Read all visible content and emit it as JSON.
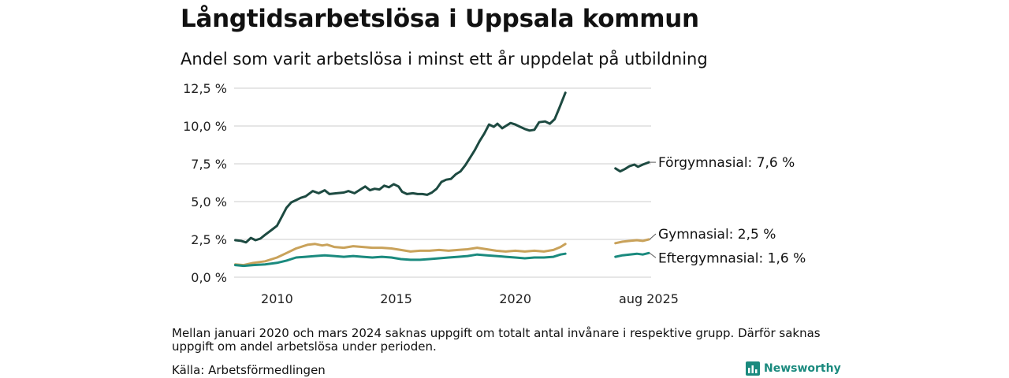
{
  "header": {
    "title": "Långtidsarbetslösa i Uppsala kommun",
    "subtitle": "Andel som varit arbetslösa i minst ett år uppdelat på utbildning"
  },
  "footer": {
    "note": "Mellan januari 2020 och mars 2024 saknas uppgift om totalt antal invånare i respektive grupp. Därför saknas uppgift om andel arbetslösa under perioden.",
    "source": "Källa: Arbetsförmedlingen",
    "brand": "Newsworthy",
    "brand_color": "#1a8a7e"
  },
  "chart_data": {
    "type": "line",
    "title": "Långtidsarbetslösa i Uppsala kommun",
    "subtitle": "Andel som varit arbetslösa i minst ett år uppdelat på utbildning",
    "xlabel": "",
    "ylabel": "",
    "ylim": [
      0,
      12.5
    ],
    "xlim": [
      2008.2,
      2025.7
    ],
    "y_ticks": [
      0,
      2.5,
      5,
      7.5,
      10,
      12.5
    ],
    "y_tick_labels": [
      "0,0 %",
      "2,5 %",
      "5,0 %",
      "7,5 %",
      "10,0 %",
      "12,5 %"
    ],
    "x_ticks": [
      2010,
      2015,
      2020,
      2025.6
    ],
    "x_tick_labels": [
      "2010",
      "2015",
      "2020",
      "aug 2025"
    ],
    "grid": true,
    "gap": "Mellan januari 2020 och mars 2024 saknas uppgift",
    "series": [
      {
        "name": "Förgymnasial",
        "end_label": "Förgymnasial: 7,6 %",
        "color": "#1d4a41",
        "segments": [
          [
            [
              2008.25,
              2.45
            ],
            [
              2008.5,
              2.4
            ],
            [
              2008.7,
              2.3
            ],
            [
              2008.9,
              2.6
            ],
            [
              2009.1,
              2.45
            ],
            [
              2009.3,
              2.55
            ],
            [
              2009.5,
              2.8
            ],
            [
              2009.75,
              3.1
            ],
            [
              2010.0,
              3.4
            ],
            [
              2010.2,
              4.0
            ],
            [
              2010.4,
              4.6
            ],
            [
              2010.6,
              4.95
            ],
            [
              2010.8,
              5.1
            ],
            [
              2011.0,
              5.25
            ],
            [
              2011.2,
              5.35
            ],
            [
              2011.5,
              5.7
            ],
            [
              2011.75,
              5.55
            ],
            [
              2012.0,
              5.75
            ],
            [
              2012.2,
              5.5
            ],
            [
              2012.5,
              5.55
            ],
            [
              2012.8,
              5.6
            ],
            [
              2013.0,
              5.7
            ],
            [
              2013.25,
              5.55
            ],
            [
              2013.5,
              5.8
            ],
            [
              2013.7,
              6.0
            ],
            [
              2013.9,
              5.75
            ],
            [
              2014.1,
              5.85
            ],
            [
              2014.3,
              5.8
            ],
            [
              2014.5,
              6.05
            ],
            [
              2014.7,
              5.95
            ],
            [
              2014.9,
              6.15
            ],
            [
              2015.1,
              6.0
            ],
            [
              2015.25,
              5.65
            ],
            [
              2015.45,
              5.5
            ],
            [
              2015.7,
              5.55
            ],
            [
              2015.9,
              5.5
            ],
            [
              2016.1,
              5.5
            ],
            [
              2016.3,
              5.45
            ],
            [
              2016.5,
              5.6
            ],
            [
              2016.7,
              5.85
            ],
            [
              2016.9,
              6.3
            ],
            [
              2017.1,
              6.45
            ],
            [
              2017.3,
              6.5
            ],
            [
              2017.5,
              6.8
            ],
            [
              2017.7,
              7.0
            ],
            [
              2017.9,
              7.4
            ],
            [
              2018.1,
              7.9
            ],
            [
              2018.3,
              8.4
            ],
            [
              2018.5,
              9.0
            ],
            [
              2018.7,
              9.5
            ],
            [
              2018.9,
              10.1
            ],
            [
              2019.1,
              9.95
            ],
            [
              2019.25,
              10.15
            ],
            [
              2019.45,
              9.85
            ],
            [
              2019.6,
              10.0
            ],
            [
              2019.8,
              10.2
            ],
            [
              2020.0,
              10.1
            ],
            [
              2020.2,
              9.95
            ],
            [
              2020.4,
              9.8
            ],
            [
              2020.6,
              9.7
            ],
            [
              2020.8,
              9.75
            ],
            [
              2021.0,
              10.25
            ],
            [
              2021.25,
              10.3
            ],
            [
              2021.45,
              10.15
            ],
            [
              2021.65,
              10.45
            ],
            [
              2021.85,
              11.2
            ],
            [
              2022.1,
              12.2
            ]
          ],
          [
            [
              2024.2,
              7.2
            ],
            [
              2024.4,
              7.0
            ],
            [
              2024.6,
              7.15
            ],
            [
              2024.8,
              7.35
            ],
            [
              2025.0,
              7.45
            ],
            [
              2025.15,
              7.3
            ],
            [
              2025.35,
              7.45
            ],
            [
              2025.6,
              7.6
            ]
          ]
        ]
      },
      {
        "name": "Gymnasial",
        "end_label": "Gymnasial: 2,5 %",
        "color": "#c9a25a",
        "segments": [
          [
            [
              2008.25,
              0.85
            ],
            [
              2008.6,
              0.8
            ],
            [
              2009.0,
              0.95
            ],
            [
              2009.5,
              1.05
            ],
            [
              2010.0,
              1.3
            ],
            [
              2010.4,
              1.6
            ],
            [
              2010.8,
              1.9
            ],
            [
              2011.1,
              2.05
            ],
            [
              2011.3,
              2.15
            ],
            [
              2011.6,
              2.2
            ],
            [
              2011.9,
              2.1
            ],
            [
              2012.1,
              2.15
            ],
            [
              2012.4,
              2.0
            ],
            [
              2012.8,
              1.95
            ],
            [
              2013.2,
              2.05
            ],
            [
              2013.6,
              2.0
            ],
            [
              2014.0,
              1.95
            ],
            [
              2014.4,
              1.95
            ],
            [
              2014.8,
              1.9
            ],
            [
              2015.2,
              1.8
            ],
            [
              2015.6,
              1.7
            ],
            [
              2016.0,
              1.75
            ],
            [
              2016.4,
              1.75
            ],
            [
              2016.8,
              1.8
            ],
            [
              2017.2,
              1.75
            ],
            [
              2017.6,
              1.8
            ],
            [
              2018.0,
              1.85
            ],
            [
              2018.4,
              1.95
            ],
            [
              2018.8,
              1.85
            ],
            [
              2019.2,
              1.75
            ],
            [
              2019.6,
              1.7
            ],
            [
              2020.0,
              1.75
            ],
            [
              2020.4,
              1.7
            ],
            [
              2020.8,
              1.75
            ],
            [
              2021.2,
              1.7
            ],
            [
              2021.6,
              1.8
            ],
            [
              2021.9,
              2.0
            ],
            [
              2022.1,
              2.2
            ]
          ],
          [
            [
              2024.2,
              2.25
            ],
            [
              2024.5,
              2.35
            ],
            [
              2024.8,
              2.4
            ],
            [
              2025.1,
              2.45
            ],
            [
              2025.35,
              2.4
            ],
            [
              2025.6,
              2.5
            ]
          ]
        ]
      },
      {
        "name": "Eftergymnasial",
        "end_label": "Eftergymnasial: 1,6 %",
        "color": "#1a8a7e",
        "segments": [
          [
            [
              2008.25,
              0.8
            ],
            [
              2008.6,
              0.75
            ],
            [
              2009.0,
              0.8
            ],
            [
              2009.5,
              0.85
            ],
            [
              2010.0,
              0.95
            ],
            [
              2010.4,
              1.1
            ],
            [
              2010.8,
              1.3
            ],
            [
              2011.2,
              1.35
            ],
            [
              2011.6,
              1.4
            ],
            [
              2012.0,
              1.45
            ],
            [
              2012.4,
              1.4
            ],
            [
              2012.8,
              1.35
            ],
            [
              2013.2,
              1.4
            ],
            [
              2013.6,
              1.35
            ],
            [
              2014.0,
              1.3
            ],
            [
              2014.4,
              1.35
            ],
            [
              2014.8,
              1.3
            ],
            [
              2015.2,
              1.2
            ],
            [
              2015.6,
              1.15
            ],
            [
              2016.0,
              1.15
            ],
            [
              2016.4,
              1.2
            ],
            [
              2016.8,
              1.25
            ],
            [
              2017.2,
              1.3
            ],
            [
              2017.6,
              1.35
            ],
            [
              2018.0,
              1.4
            ],
            [
              2018.4,
              1.5
            ],
            [
              2018.8,
              1.45
            ],
            [
              2019.2,
              1.4
            ],
            [
              2019.6,
              1.35
            ],
            [
              2020.0,
              1.3
            ],
            [
              2020.4,
              1.25
            ],
            [
              2020.8,
              1.3
            ],
            [
              2021.2,
              1.3
            ],
            [
              2021.6,
              1.35
            ],
            [
              2021.9,
              1.5
            ],
            [
              2022.1,
              1.55
            ]
          ],
          [
            [
              2024.2,
              1.35
            ],
            [
              2024.5,
              1.45
            ],
            [
              2024.8,
              1.5
            ],
            [
              2025.1,
              1.55
            ],
            [
              2025.35,
              1.5
            ],
            [
              2025.6,
              1.6
            ]
          ]
        ]
      }
    ]
  }
}
